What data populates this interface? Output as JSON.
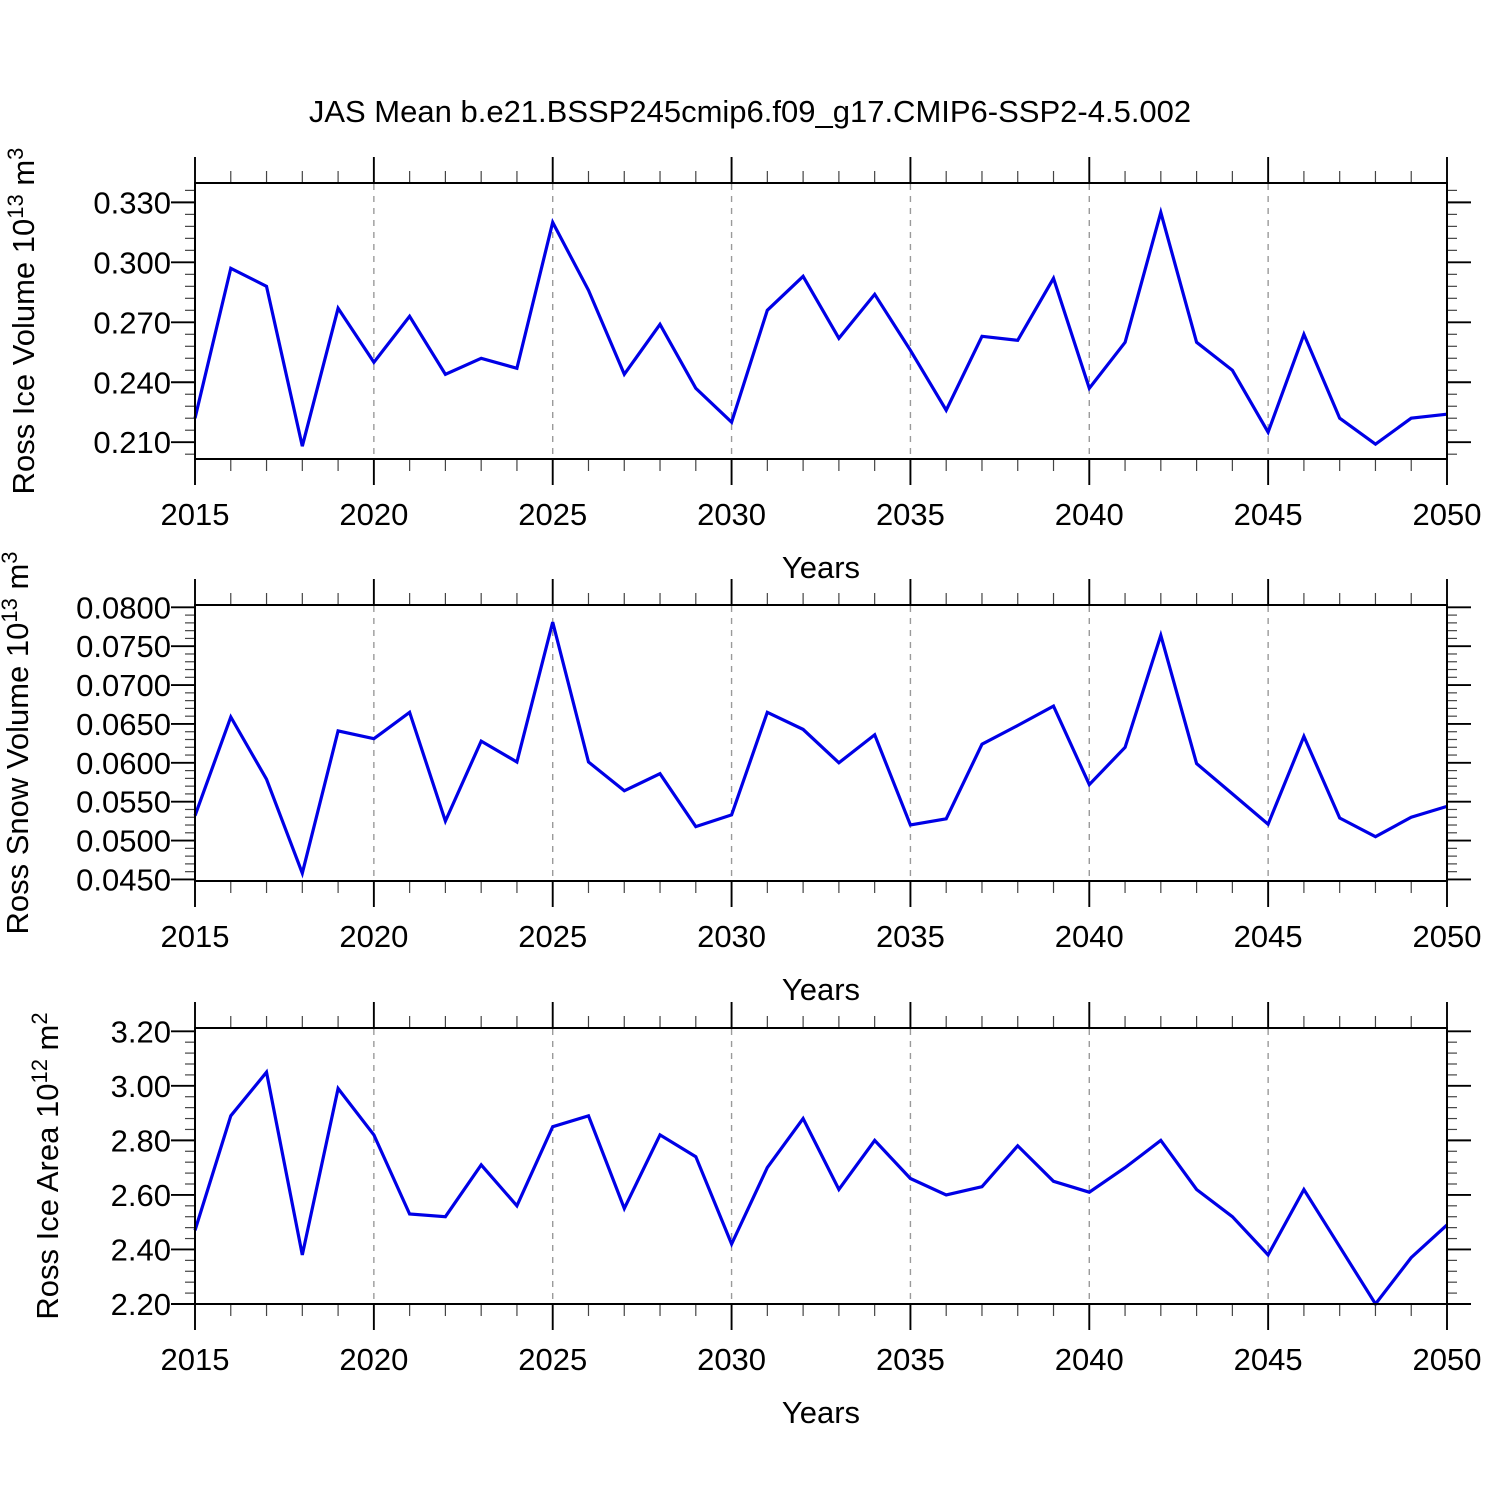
{
  "title": "JAS Mean b.e21.BSSP245cmip6.f09_g17.CMIP6-SSP2-4.5.002",
  "colors": {
    "line": "#0000e6",
    "grid": "#9a9a9a",
    "axis": "#000000",
    "minor_tick": "#444444",
    "background": "#ffffff"
  },
  "chart_data": [
    {
      "type": "line",
      "name": "ross-ice-volume-chart",
      "ylabel_base": "Ross Ice Volume 10",
      "ylabel_exp": "13",
      "ylabel_unit": " m",
      "ylabel_unit_exp": "3",
      "xlabel": "Years",
      "x_major_ticks": [
        2015,
        2020,
        2025,
        2030,
        2035,
        2040,
        2045,
        2050
      ],
      "grid_years": [
        2020,
        2025,
        2030,
        2035,
        2040,
        2045
      ],
      "ylim": [
        0.2016,
        0.3397
      ],
      "yticks": [
        {
          "v": 0.21,
          "label": "0.210"
        },
        {
          "v": 0.24,
          "label": "0.240"
        },
        {
          "v": 0.27,
          "label": "0.270"
        },
        {
          "v": 0.3,
          "label": "0.300"
        },
        {
          "v": 0.33,
          "label": "0.330"
        }
      ],
      "y_minor_start": 0.204,
      "y_minor_step": 0.006,
      "x": [
        2015,
        2016,
        2017,
        2018,
        2019,
        2020,
        2021,
        2022,
        2023,
        2024,
        2025,
        2026,
        2027,
        2028,
        2029,
        2030,
        2031,
        2032,
        2033,
        2034,
        2035,
        2036,
        2037,
        2038,
        2039,
        2040,
        2041,
        2042,
        2043,
        2044,
        2045,
        2046,
        2047,
        2048,
        2049,
        2050
      ],
      "values": [
        0.222,
        0.297,
        0.288,
        0.208,
        0.277,
        0.25,
        0.273,
        0.244,
        0.252,
        0.247,
        0.32,
        0.286,
        0.244,
        0.269,
        0.237,
        0.22,
        0.276,
        0.293,
        0.262,
        0.284,
        0.256,
        0.226,
        0.263,
        0.261,
        0.292,
        0.237,
        0.26,
        0.325,
        0.26,
        0.246,
        0.215,
        0.264,
        0.222,
        0.209,
        0.222,
        0.224
      ]
    },
    {
      "type": "line",
      "name": "ross-snow-volume-chart",
      "ylabel_base": "Ross Snow Volume 10",
      "ylabel_exp": "13",
      "ylabel_unit": " m",
      "ylabel_unit_exp": "3",
      "xlabel": "Years",
      "x_major_ticks": [
        2015,
        2020,
        2025,
        2030,
        2035,
        2040,
        2045,
        2050
      ],
      "grid_years": [
        2020,
        2025,
        2030,
        2035,
        2040,
        2045
      ],
      "ylim": [
        0.0448,
        0.0803
      ],
      "yticks": [
        {
          "v": 0.045,
          "label": "0.0450"
        },
        {
          "v": 0.05,
          "label": "0.0500"
        },
        {
          "v": 0.055,
          "label": "0.0550"
        },
        {
          "v": 0.06,
          "label": "0.0600"
        },
        {
          "v": 0.065,
          "label": "0.0650"
        },
        {
          "v": 0.07,
          "label": "0.0700"
        },
        {
          "v": 0.075,
          "label": "0.0750"
        },
        {
          "v": 0.08,
          "label": "0.0800"
        }
      ],
      "y_minor_start": 0.045,
      "y_minor_step": 0.001,
      "x": [
        2015,
        2016,
        2017,
        2018,
        2019,
        2020,
        2021,
        2022,
        2023,
        2024,
        2025,
        2026,
        2027,
        2028,
        2029,
        2030,
        2031,
        2032,
        2033,
        2034,
        2035,
        2036,
        2037,
        2038,
        2039,
        2040,
        2041,
        2042,
        2043,
        2044,
        2045,
        2046,
        2047,
        2048,
        2049,
        2050
      ],
      "values": [
        0.0532,
        0.0659,
        0.0579,
        0.0458,
        0.0641,
        0.0631,
        0.0665,
        0.0525,
        0.0628,
        0.0601,
        0.0781,
        0.0601,
        0.0564,
        0.0586,
        0.0518,
        0.0533,
        0.0665,
        0.0643,
        0.06,
        0.0636,
        0.052,
        0.0528,
        0.0624,
        0.0648,
        0.0673,
        0.0572,
        0.062,
        0.0764,
        0.0599,
        0.056,
        0.0521,
        0.0634,
        0.0529,
        0.0505,
        0.053,
        0.0544
      ]
    },
    {
      "type": "line",
      "name": "ross-ice-area-chart",
      "ylabel_base": "Ross Ice Area 10",
      "ylabel_exp": "12",
      "ylabel_unit": " m",
      "ylabel_unit_exp": "2",
      "xlabel": "Years",
      "x_major_ticks": [
        2015,
        2020,
        2025,
        2030,
        2035,
        2040,
        2045,
        2050
      ],
      "grid_years": [
        2020,
        2025,
        2030,
        2035,
        2040,
        2045
      ],
      "ylim": [
        2.2,
        3.212
      ],
      "yticks": [
        {
          "v": 2.2,
          "label": "2.20"
        },
        {
          "v": 2.4,
          "label": "2.40"
        },
        {
          "v": 2.6,
          "label": "2.60"
        },
        {
          "v": 2.8,
          "label": "2.80"
        },
        {
          "v": 3.0,
          "label": "3.00"
        },
        {
          "v": 3.2,
          "label": "3.20"
        }
      ],
      "y_minor_start": 2.2,
      "y_minor_step": 0.04,
      "x": [
        2015,
        2016,
        2017,
        2018,
        2019,
        2020,
        2021,
        2022,
        2023,
        2024,
        2025,
        2026,
        2027,
        2028,
        2029,
        2030,
        2031,
        2032,
        2033,
        2034,
        2035,
        2036,
        2037,
        2038,
        2039,
        2040,
        2041,
        2042,
        2043,
        2044,
        2045,
        2046,
        2047,
        2048,
        2049,
        2050
      ],
      "values": [
        2.47,
        2.89,
        3.05,
        2.38,
        2.99,
        2.82,
        2.53,
        2.52,
        2.71,
        2.56,
        2.85,
        2.89,
        2.55,
        2.82,
        2.74,
        2.42,
        2.7,
        2.88,
        2.62,
        2.8,
        2.66,
        2.6,
        2.63,
        2.78,
        2.65,
        2.61,
        2.7,
        2.8,
        2.62,
        2.52,
        2.38,
        2.62,
        2.41,
        2.2,
        2.37,
        2.49
      ]
    }
  ]
}
